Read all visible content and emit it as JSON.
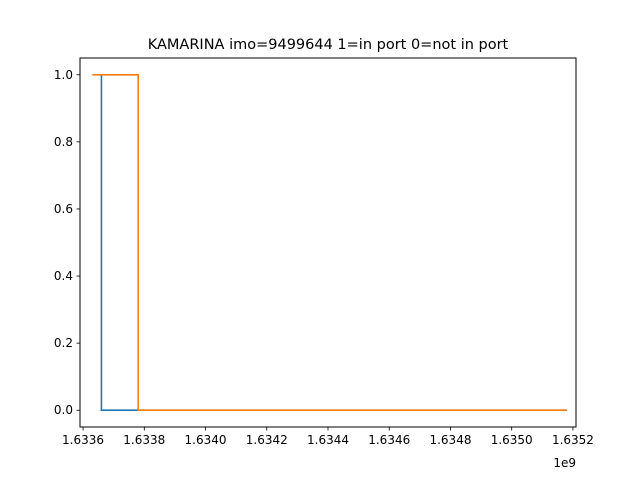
{
  "chart_data": {
    "type": "line",
    "title": "KAMARINA imo=9499644 1=in port 0=not in port",
    "xlabel": "",
    "ylabel": "",
    "x_offset_label": "1e9",
    "xlim": [
      1.63359,
      1.63521
    ],
    "ylim": [
      -0.05,
      1.05
    ],
    "x_ticks": [
      1.6336,
      1.6338,
      1.634,
      1.6342,
      1.6344,
      1.6346,
      1.6348,
      1.635,
      1.6352
    ],
    "x_tick_labels": [
      "1.6336",
      "1.6338",
      "1.6340",
      "1.6342",
      "1.6344",
      "1.6346",
      "1.6348",
      "1.6350",
      "1.6352"
    ],
    "y_ticks": [
      0.0,
      0.2,
      0.4,
      0.6,
      0.8,
      1.0
    ],
    "y_tick_labels": [
      "0.0",
      "0.2",
      "0.4",
      "0.6",
      "0.8",
      "1.0"
    ],
    "grid": false,
    "legend": "none",
    "series": [
      {
        "color": "#1f77b4",
        "points": [
          [
            1.63366,
            1.0
          ],
          [
            1.63366,
            0.0
          ],
          [
            1.63518,
            0.0
          ]
        ]
      },
      {
        "color": "#ff7f0e",
        "points": [
          [
            1.63363,
            1.0
          ],
          [
            1.63378,
            1.0
          ],
          [
            1.63378,
            0.0
          ],
          [
            1.63518,
            0.0
          ]
        ]
      }
    ]
  }
}
